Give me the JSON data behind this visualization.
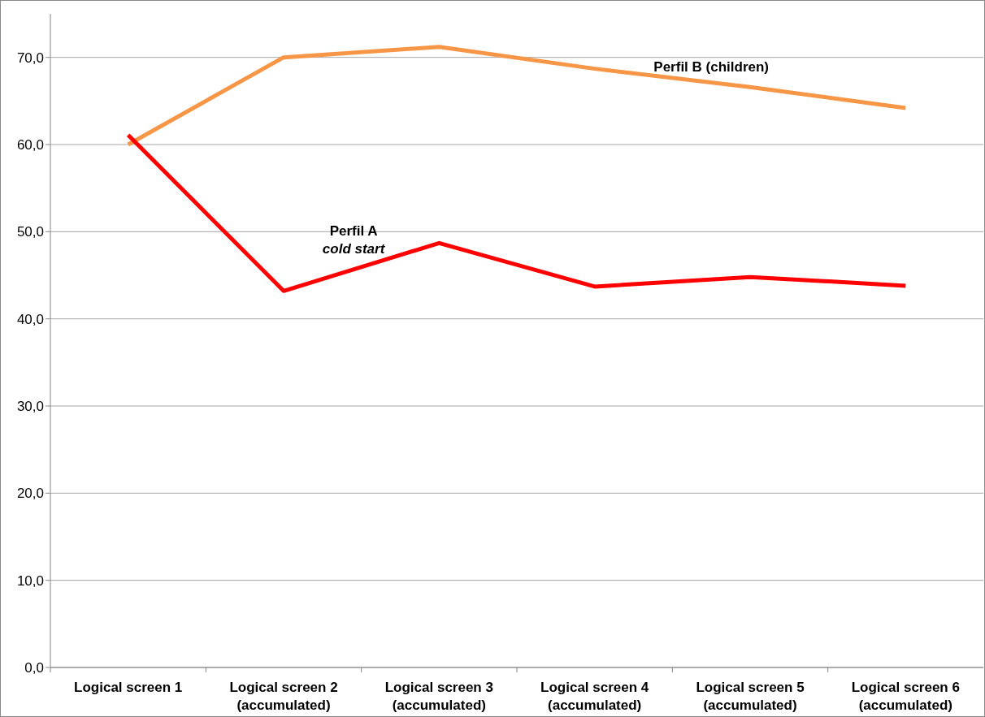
{
  "chart_data": {
    "type": "line",
    "categories": [
      "Logical screen 1",
      "Logical screen 2 (accumulated)",
      "Logical screen 3 (accumulated)",
      "Logical screen 4 (accumulated)",
      "Logical screen 5 (accumulated)",
      "Logical screen 6 (accumulated)"
    ],
    "series": [
      {
        "name": "Perfil B (children)",
        "color": "#f79646",
        "values": [
          60.0,
          70.0,
          71.2,
          68.7,
          66.6,
          64.2
        ]
      },
      {
        "name": "Perfil A",
        "color": "#ff0000",
        "values": [
          61.1,
          43.2,
          48.7,
          43.7,
          44.8,
          43.8
        ]
      }
    ],
    "annotations": [
      "cold start"
    ],
    "ylim": [
      0,
      75
    ],
    "yticks": [
      {
        "value": 0,
        "label": "0,0"
      },
      {
        "value": 10,
        "label": "10,0"
      },
      {
        "value": 20,
        "label": "20,0"
      },
      {
        "value": 30,
        "label": "30,0"
      },
      {
        "value": 40,
        "label": "40,0"
      },
      {
        "value": 50,
        "label": "50,0"
      },
      {
        "value": 60,
        "label": "60,0"
      },
      {
        "value": 70,
        "label": "70,0"
      }
    ],
    "grid": "y",
    "marker": "none",
    "line_style": "solid"
  }
}
